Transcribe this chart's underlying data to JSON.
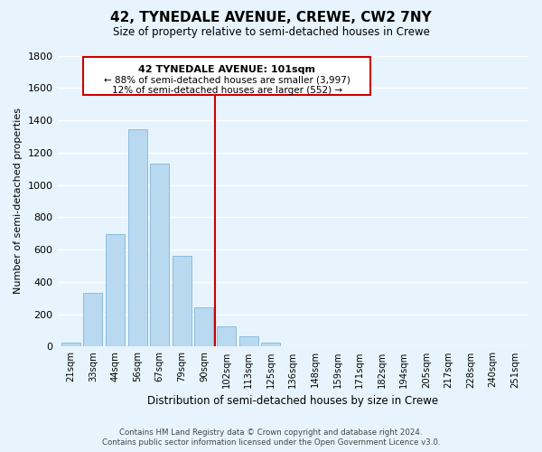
{
  "title": "42, TYNEDALE AVENUE, CREWE, CW2 7NY",
  "subtitle": "Size of property relative to semi-detached houses in Crewe",
  "xlabel": "Distribution of semi-detached houses by size in Crewe",
  "ylabel": "Number of semi-detached properties",
  "bin_labels": [
    "21sqm",
    "33sqm",
    "44sqm",
    "56sqm",
    "67sqm",
    "79sqm",
    "90sqm",
    "102sqm",
    "113sqm",
    "125sqm",
    "136sqm",
    "148sqm",
    "159sqm",
    "171sqm",
    "182sqm",
    "194sqm",
    "205sqm",
    "217sqm",
    "228sqm",
    "240sqm",
    "251sqm"
  ],
  "bar_values": [
    25,
    330,
    695,
    1345,
    1130,
    560,
    245,
    125,
    65,
    25,
    5,
    0,
    0,
    0,
    0,
    0,
    0,
    0,
    0,
    0,
    0
  ],
  "bar_color": "#b8d9f0",
  "bar_edge_color": "#8bbcde",
  "marker_index": 7,
  "marker_label": "42 TYNEDALE AVENUE: 101sqm",
  "annotation_line1": "← 88% of semi-detached houses are smaller (3,997)",
  "annotation_line2": "12% of semi-detached houses are larger (552) →",
  "marker_color": "#cc0000",
  "ylim": [
    0,
    1800
  ],
  "yticks": [
    0,
    200,
    400,
    600,
    800,
    1000,
    1200,
    1400,
    1600,
    1800
  ],
  "footer_line1": "Contains HM Land Registry data © Crown copyright and database right 2024.",
  "footer_line2": "Contains public sector information licensed under the Open Government Licence v3.0.",
  "background_color": "#e8f4fd",
  "grid_color": "#ffffff"
}
